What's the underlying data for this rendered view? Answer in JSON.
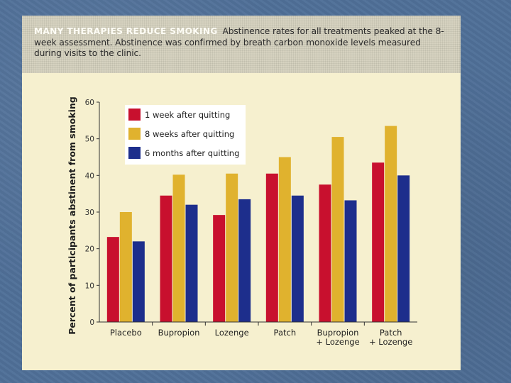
{
  "caption": {
    "heading": "Many therapies reduce smoking",
    "text": "Abstinence rates for all treatments peaked at the 8-week assessment. Abstinence was confirmed by breath carbon monoxide levels measured during visits to the clinic."
  },
  "colors": {
    "slide_bg": "#f6f0cf",
    "series": [
      "#c8102e",
      "#e0b22e",
      "#1d2e8c"
    ]
  },
  "chart_data": {
    "type": "bar",
    "title": "",
    "xlabel": "",
    "ylabel": "Percent of participants abstinent  from smoking",
    "ylim": [
      0,
      60
    ],
    "yticks": [
      0,
      10,
      20,
      30,
      40,
      50,
      60
    ],
    "categories": [
      [
        "Placebo"
      ],
      [
        "Bupropion"
      ],
      [
        "Lozenge"
      ],
      [
        "Patch"
      ],
      [
        "Bupropion",
        "+ Lozenge"
      ],
      [
        "Patch",
        "+ Lozenge"
      ]
    ],
    "series": [
      {
        "name": "1 week after quitting",
        "color": "#c8102e",
        "values": [
          23.2,
          34.5,
          29.2,
          40.5,
          37.5,
          43.5
        ]
      },
      {
        "name": "8 weeks after quitting",
        "color": "#e0b22e",
        "values": [
          30.0,
          40.2,
          40.5,
          45.0,
          50.5,
          53.5
        ]
      },
      {
        "name": "6 months after quitting",
        "color": "#1d2e8c",
        "values": [
          22.0,
          32.0,
          33.5,
          34.5,
          33.2,
          40.0
        ]
      }
    ],
    "legend_position": "top-left"
  }
}
